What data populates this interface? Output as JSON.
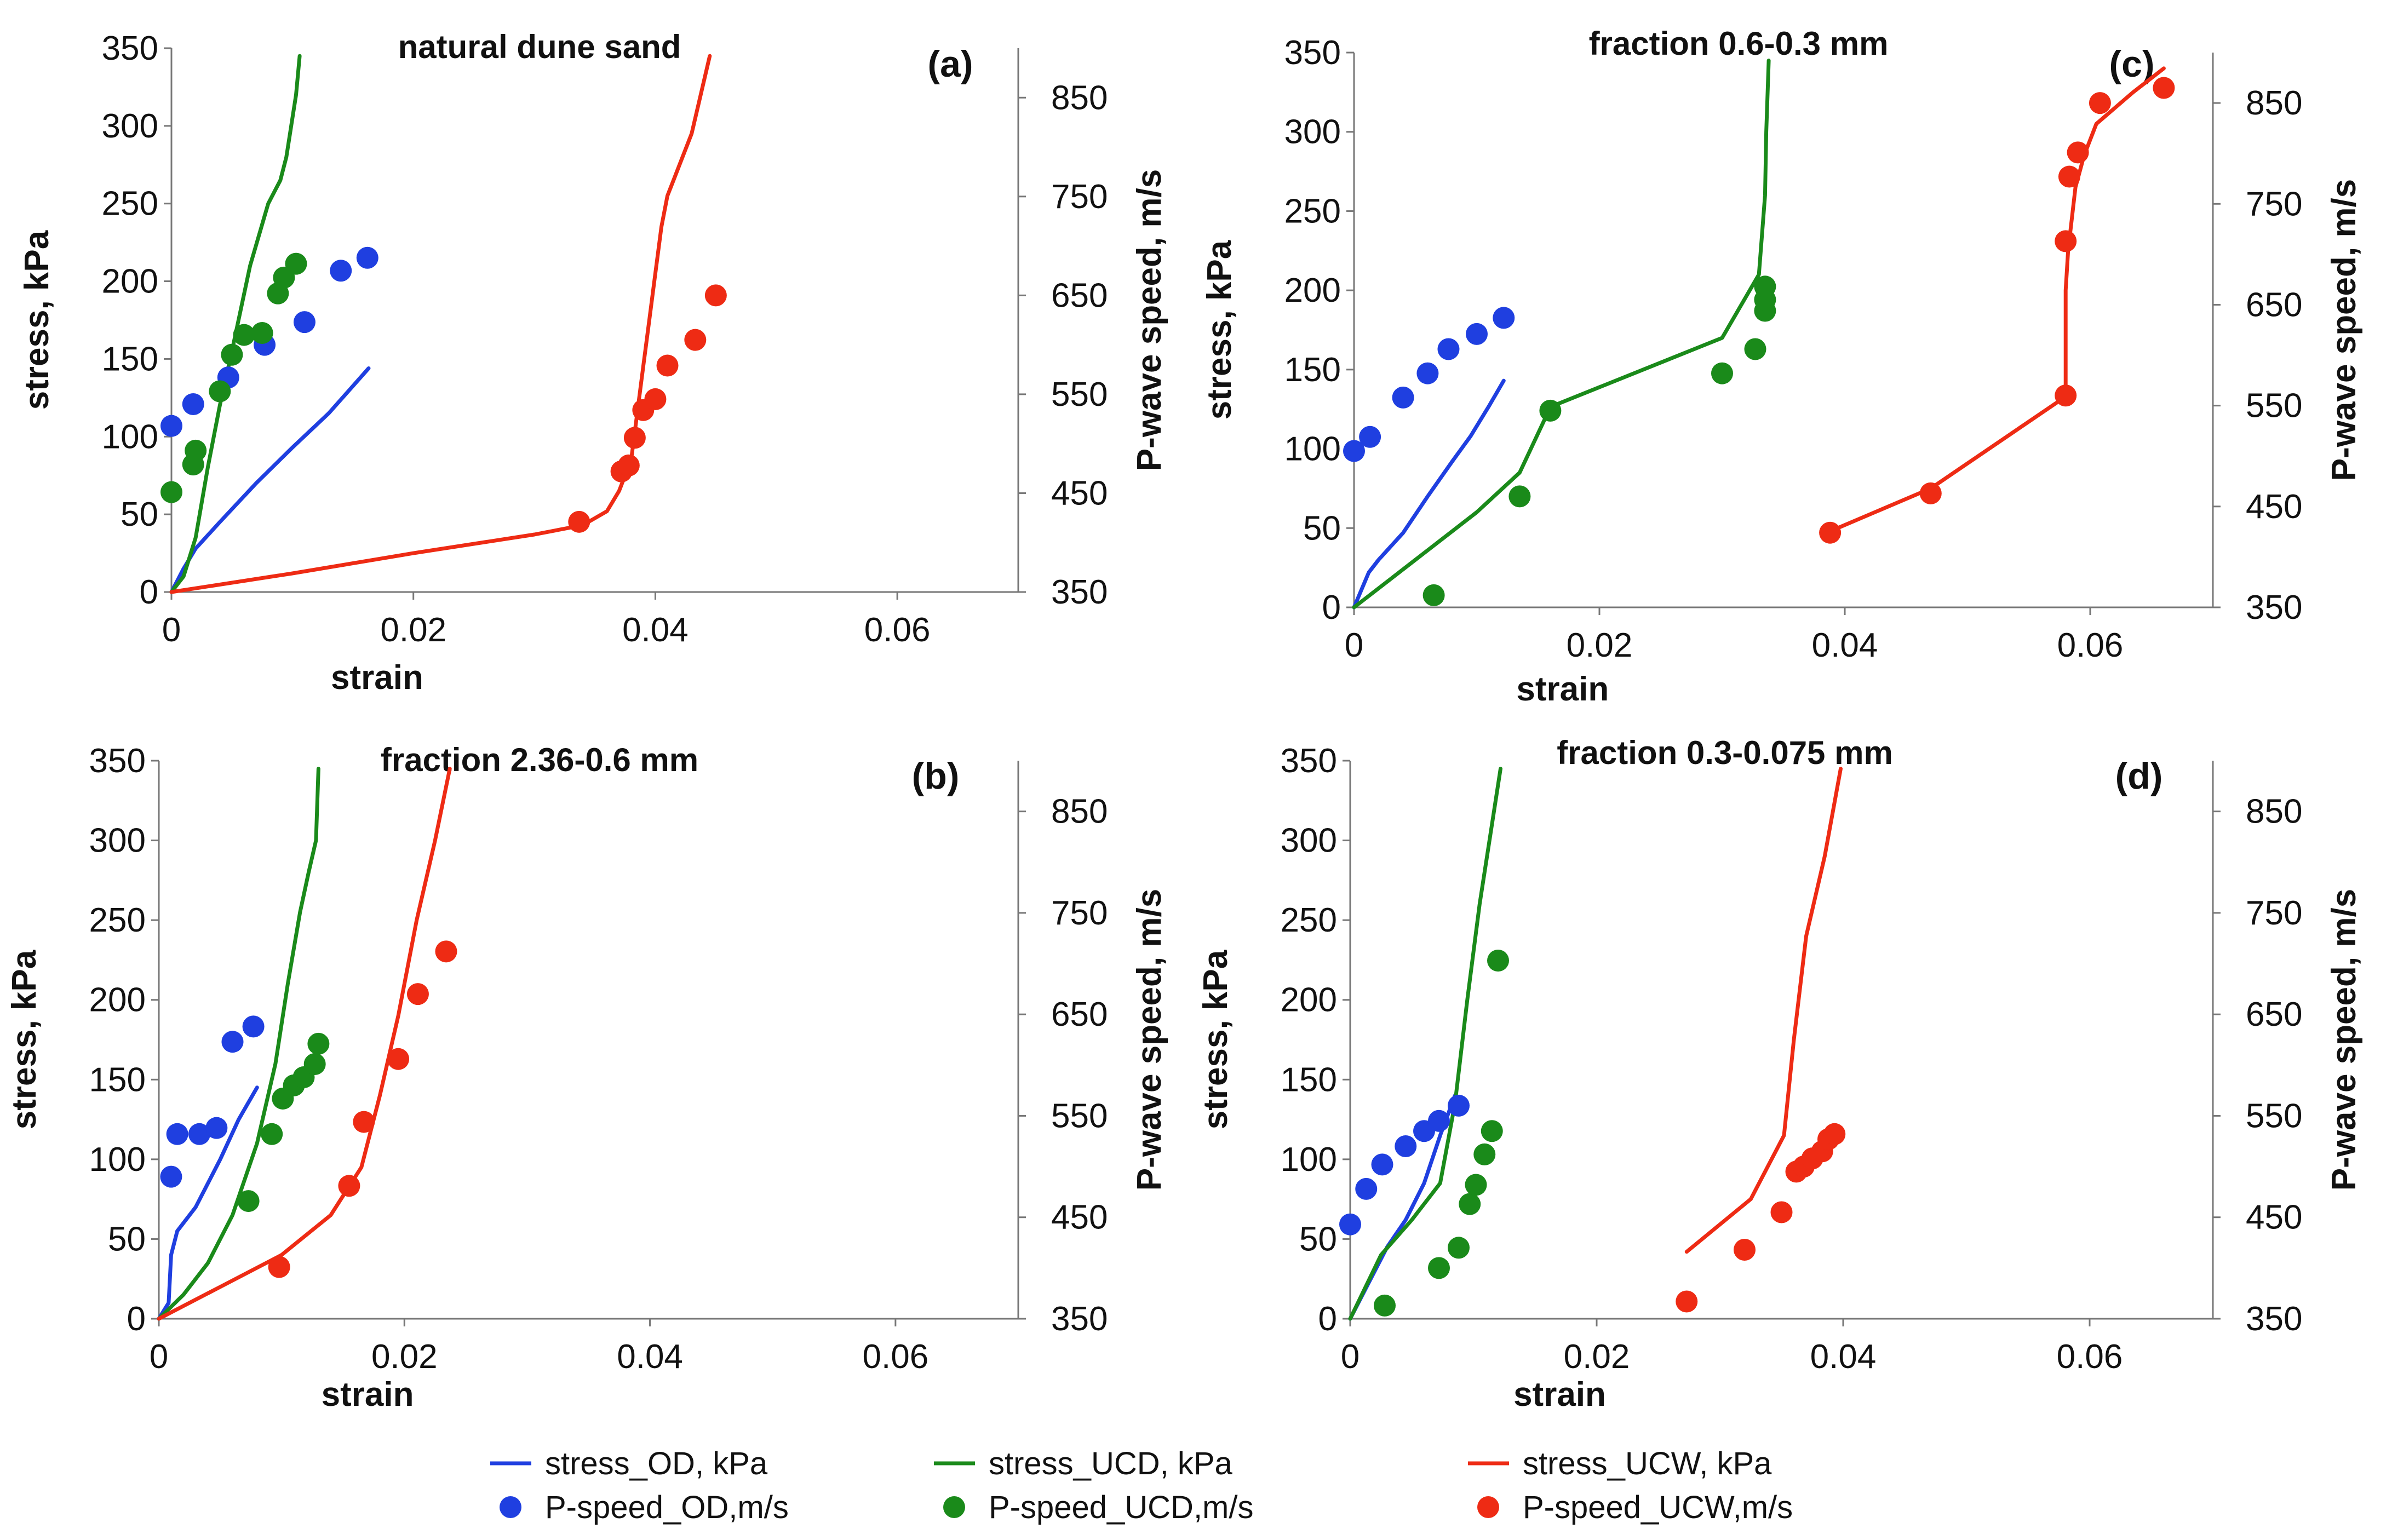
{
  "legend": [
    {
      "label": "stress_OD, kPa",
      "kind": "line",
      "color": "#1f3fe0"
    },
    {
      "label": "stress_UCD, kPa",
      "kind": "line",
      "color": "#1a8a1a"
    },
    {
      "label": "stress_UCW, kPa",
      "kind": "line",
      "color": "#ee2b14"
    },
    {
      "label": "P-speed_OD,m/s",
      "kind": "dot",
      "color": "#1f3fe0"
    },
    {
      "label": "P-speed_UCD,m/s",
      "kind": "dot",
      "color": "#1a8a1a"
    },
    {
      "label": "P-speed_UCW,m/s",
      "kind": "dot",
      "color": "#ee2b14"
    }
  ],
  "chart_data": [
    {
      "type": "line+scatter",
      "panel_label": "(a)",
      "title": "natural dune sand",
      "xlabel": "strain",
      "ylabel": "stress, kPa",
      "y2label": "P-wave speed, m/s",
      "xlim": [
        0,
        0.07
      ],
      "ylim": [
        0,
        350
      ],
      "y2lim": [
        350,
        900
      ],
      "xticks": [
        0,
        0.02,
        0.04,
        0.06
      ],
      "xticklabels": [
        "0",
        "0.02",
        "0.04",
        "0.06"
      ],
      "yticks": [
        0,
        50,
        100,
        150,
        200,
        250,
        300,
        350
      ],
      "y2ticks": [
        350,
        450,
        550,
        650,
        750,
        850
      ],
      "lines": [
        {
          "name": "stress_OD, kPa",
          "color": "#1f3fe0",
          "x": [
            0,
            0.001,
            0.002,
            0.004,
            0.007,
            0.01,
            0.013,
            0.0163
          ],
          "y": [
            0,
            15,
            28,
            45,
            70,
            93,
            115,
            144
          ]
        },
        {
          "name": "stress_UCD, kPa",
          "color": "#1a8a1a",
          "x": [
            0,
            0.001,
            0.002,
            0.003,
            0.004,
            0.005,
            0.0065,
            0.008,
            0.009,
            0.0095,
            0.0103,
            0.0106
          ],
          "y": [
            0,
            10,
            35,
            80,
            120,
            155,
            210,
            250,
            265,
            280,
            320,
            345
          ]
        },
        {
          "name": "stress_UCW, kPa",
          "color": "#ee2b14",
          "x": [
            0,
            0.01,
            0.02,
            0.03,
            0.034,
            0.036,
            0.037,
            0.038,
            0.0385,
            0.039,
            0.0395,
            0.04,
            0.0405,
            0.041,
            0.0415,
            0.042,
            0.043,
            0.0445
          ],
          "y": [
            0,
            12,
            25,
            37,
            43,
            52,
            65,
            85,
            115,
            145,
            175,
            205,
            235,
            255,
            265,
            275,
            295,
            345
          ]
        }
      ],
      "points": [
        {
          "name": "P-speed_OD,m/s",
          "color": "#1f3fe0",
          "x": [
            0,
            0.0018,
            0.0047,
            0.0077,
            0.011,
            0.014,
            0.0162
          ],
          "y": [
            518,
            540,
            567,
            600,
            623,
            675,
            688
          ]
        },
        {
          "name": "P-speed_UCD,m/s",
          "color": "#1a8a1a",
          "x": [
            0,
            0.0018,
            0.002,
            0.004,
            0.005,
            0.006,
            0.0075,
            0.0088,
            0.0093,
            0.0103
          ],
          "y": [
            451,
            479,
            493,
            553,
            590,
            610,
            612,
            652,
            668,
            682
          ]
        },
        {
          "name": "P-speed_UCW,m/s",
          "color": "#ee2b14",
          "x": [
            0.0337,
            0.0372,
            0.0378,
            0.0383,
            0.039,
            0.04,
            0.041,
            0.0433,
            0.045
          ],
          "y": [
            421,
            472,
            478,
            506,
            534,
            545,
            579,
            605,
            650
          ]
        }
      ]
    },
    {
      "type": "line+scatter",
      "panel_label": "(b)",
      "title": "fraction 2.36-0.6 mm",
      "xlabel": "strain",
      "ylabel": "stress, kPa",
      "y2label": "P-wave speed, m/s",
      "xlim": [
        0,
        0.07
      ],
      "ylim": [
        0,
        350
      ],
      "y2lim": [
        350,
        900
      ],
      "xticks": [
        0,
        0.02,
        0.04,
        0.06
      ],
      "xticklabels": [
        "0",
        "0.02",
        "0.04",
        "0.06"
      ],
      "yticks": [
        0,
        50,
        100,
        150,
        200,
        250,
        300,
        350
      ],
      "y2ticks": [
        350,
        450,
        550,
        650,
        750,
        850
      ],
      "lines": [
        {
          "name": "stress_OD, kPa",
          "color": "#1f3fe0",
          "x": [
            0,
            0.0008,
            0.001,
            0.0015,
            0.003,
            0.005,
            0.0065,
            0.008
          ],
          "y": [
            0,
            10,
            40,
            55,
            70,
            100,
            125,
            145
          ]
        },
        {
          "name": "stress_UCD, kPa",
          "color": "#1a8a1a",
          "x": [
            0,
            0.002,
            0.004,
            0.006,
            0.008,
            0.0095,
            0.0105,
            0.0115,
            0.0122,
            0.0128,
            0.013
          ],
          "y": [
            0,
            15,
            35,
            65,
            110,
            160,
            210,
            255,
            280,
            300,
            345
          ]
        },
        {
          "name": "stress_UCW, kPa",
          "color": "#ee2b14",
          "x": [
            0,
            0.005,
            0.01,
            0.014,
            0.0165,
            0.018,
            0.0195,
            0.021,
            0.0225,
            0.0237
          ],
          "y": [
            0,
            20,
            40,
            65,
            95,
            140,
            190,
            250,
            300,
            345
          ]
        }
      ],
      "points": [
        {
          "name": "P-speed_OD,m/s",
          "color": "#1f3fe0",
          "x": [
            0.001,
            0.0015,
            0.0033,
            0.0047,
            0.006,
            0.0077
          ],
          "y": [
            490,
            532,
            532,
            538,
            623,
            638
          ]
        },
        {
          "name": "P-speed_UCD,m/s",
          "color": "#1a8a1a",
          "x": [
            0.0073,
            0.0092,
            0.0101,
            0.011,
            0.0118,
            0.0127,
            0.013
          ],
          "y": [
            466,
            532,
            567,
            580,
            588,
            601,
            621
          ]
        },
        {
          "name": "P-speed_UCW,m/s",
          "color": "#ee2b14",
          "x": [
            0.0098,
            0.0155,
            0.0167,
            0.0195,
            0.0211,
            0.0234
          ],
          "y": [
            401,
            481,
            544,
            606,
            670,
            712
          ]
        }
      ]
    },
    {
      "type": "line+scatter",
      "panel_label": "(c)",
      "title": "fraction 0.6-0.3 mm",
      "xlabel": "strain",
      "ylabel": "stress, kPa",
      "y2label": "P-wave speed, m/s",
      "xlim": [
        0,
        0.07
      ],
      "ylim": [
        0,
        350
      ],
      "y2lim": [
        350,
        900
      ],
      "xticks": [
        0,
        0.02,
        0.04,
        0.06
      ],
      "xticklabels": [
        "0",
        "0.02",
        "0.04",
        "0.06"
      ],
      "yticks": [
        0,
        50,
        100,
        150,
        200,
        250,
        300,
        350
      ],
      "y2ticks": [
        350,
        450,
        550,
        650,
        750,
        850
      ],
      "lines": [
        {
          "name": "stress_OD, kPa",
          "color": "#1f3fe0",
          "x": [
            0,
            0.0012,
            0.002,
            0.004,
            0.006,
            0.008,
            0.0095,
            0.011,
            0.0122
          ],
          "y": [
            0,
            22,
            30,
            47,
            70,
            92,
            108,
            127,
            143
          ]
        },
        {
          "name": "stress_UCD, kPa",
          "color": "#1a8a1a",
          "x": [
            0,
            0.005,
            0.01,
            0.0135,
            0.0155,
            0.0165,
            0.03,
            0.033,
            0.0335,
            0.0336,
            0.0338
          ],
          "y": [
            0,
            30,
            60,
            85,
            118,
            128,
            170,
            210,
            260,
            300,
            345
          ]
        },
        {
          "name": "stress_UCW, kPa",
          "color": "#ee2b14",
          "x": [
            0.0388,
            0.047,
            0.058,
            0.058,
            0.0582,
            0.0588,
            0.0595,
            0.0605,
            0.0635,
            0.066
          ],
          "y": [
            48,
            75,
            133,
            200,
            225,
            265,
            285,
            305,
            325,
            340
          ]
        }
      ],
      "points": [
        {
          "name": "P-speed_OD,m/s",
          "color": "#1f3fe0",
          "x": [
            0,
            0.0013,
            0.004,
            0.006,
            0.0077,
            0.01,
            0.0122
          ],
          "y": [
            505,
            519,
            558,
            582,
            606,
            621,
            637
          ]
        },
        {
          "name": "P-speed_UCD,m/s",
          "color": "#1a8a1a",
          "x": [
            0.0065,
            0.0135,
            0.016,
            0.03,
            0.0327,
            0.0335,
            0.0335,
            0.0335
          ],
          "y": [
            362,
            460,
            545,
            582,
            606,
            644,
            655,
            668
          ]
        },
        {
          "name": "P-speed_UCW,m/s",
          "color": "#ee2b14",
          "x": [
            0.0388,
            0.047,
            0.058,
            0.058,
            0.0583,
            0.059,
            0.0608,
            0.066
          ],
          "y": [
            424,
            463,
            560,
            713,
            777,
            801,
            850,
            865
          ]
        }
      ]
    },
    {
      "type": "line+scatter",
      "panel_label": "(d)",
      "title": "fraction 0.3-0.075 mm",
      "xlabel": "strain",
      "ylabel": "stress, kPa",
      "y2label": "P-wave speed, m/s",
      "xlim": [
        0,
        0.07
      ],
      "ylim": [
        0,
        350
      ],
      "y2lim": [
        350,
        900
      ],
      "xticks": [
        0,
        0.02,
        0.04,
        0.06
      ],
      "xticklabels": [
        "0",
        "0.02",
        "0.04",
        "0.06"
      ],
      "yticks": [
        0,
        50,
        100,
        150,
        200,
        250,
        300,
        350
      ],
      "y2ticks": [
        350,
        450,
        550,
        650,
        750,
        850
      ],
      "lines": [
        {
          "name": "stress_OD, kPa",
          "color": "#1f3fe0",
          "x": [
            0,
            0.001,
            0.002,
            0.003,
            0.0045,
            0.006,
            0.0073,
            0.0085
          ],
          "y": [
            0,
            15,
            30,
            45,
            62,
            85,
            115,
            140
          ]
        },
        {
          "name": "stress_UCD, kPa",
          "color": "#1a8a1a",
          "x": [
            0,
            0.0025,
            0.005,
            0.0073,
            0.0085,
            0.0095,
            0.0105,
            0.0115,
            0.0122
          ],
          "y": [
            0,
            40,
            62,
            85,
            135,
            200,
            260,
            310,
            345
          ]
        },
        {
          "name": "stress_UCW, kPa",
          "color": "#ee2b14",
          "x": [
            0.0273,
            0.0325,
            0.0352,
            0.036,
            0.037,
            0.0385,
            0.0398
          ],
          "y": [
            42,
            75,
            115,
            175,
            240,
            290,
            345
          ]
        }
      ],
      "points": [
        {
          "name": "P-speed_OD,m/s",
          "color": "#1f3fe0",
          "x": [
            0,
            0.0013,
            0.0026,
            0.0045,
            0.006,
            0.0072,
            0.0088
          ],
          "y": [
            443,
            478,
            502,
            520,
            535,
            545,
            560
          ]
        },
        {
          "name": "P-speed_UCD,m/s",
          "color": "#1a8a1a",
          "x": [
            0.0028,
            0.0072,
            0.0088,
            0.0097,
            0.0102,
            0.0109,
            0.0115,
            0.012
          ],
          "y": [
            363,
            400,
            420,
            463,
            482,
            512,
            535,
            703
          ]
        },
        {
          "name": "P-speed_UCW,m/s",
          "color": "#ee2b14",
          "x": [
            0.0273,
            0.032,
            0.035,
            0.0362,
            0.0368,
            0.0375,
            0.0383,
            0.0388,
            0.0393
          ],
          "y": [
            367,
            418,
            455,
            495,
            500,
            508,
            515,
            527,
            532
          ]
        }
      ]
    }
  ]
}
